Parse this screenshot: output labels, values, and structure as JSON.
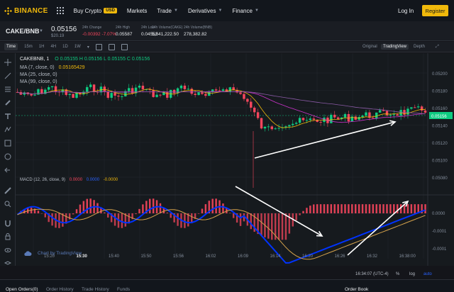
{
  "nav": {
    "logo": "BINANCE",
    "items": [
      {
        "label": "Buy Crypto",
        "badge": "USD"
      },
      {
        "label": "Markets"
      },
      {
        "label": "Trade"
      },
      {
        "label": "Derivatives"
      },
      {
        "label": "Finance"
      }
    ],
    "login": "Log In",
    "register": "Register"
  },
  "ticker": {
    "pair": "CAKE/BNB",
    "price": "0.05156",
    "price_usd": "$20.19",
    "stats": [
      {
        "label": "24h Change",
        "value": "-0.00392 -7.07%"
      },
      {
        "label": "24h High",
        "value": "0.05587"
      },
      {
        "label": "24h Low",
        "value": "0.04552"
      },
      {
        "label": "24h Volume(CAKE)",
        "value": "5,541,222.50"
      },
      {
        "label": "24h Volume(BNB)",
        "value": "278,382.82"
      }
    ]
  },
  "toolbar": {
    "timeframes": [
      "Time",
      "15m",
      "1H",
      "4H",
      "1D",
      "1W"
    ],
    "views": [
      "Original",
      "TradingView",
      "Depth"
    ]
  },
  "legend": {
    "symbol": "CAKEBNB, 1",
    "ohlc": "O 0.05155  H 0.05156  L 0.05155  C 0.05156",
    "ma7": "MA (7, close, 0)",
    "ma7_val": "0.05165429",
    "ma25": "MA (25, close, 0)",
    "ma99": "MA (99, close, 0)",
    "macd": "MACD (12, 26, close, 9)",
    "macd_v1": "0.0000",
    "macd_v2": "0.0000",
    "macd_v3": "-0.0000"
  },
  "price_axis": [
    "0.05200",
    "0.05180",
    "0.05160",
    "0.05140",
    "0.05120",
    "0.05100",
    "0.05080"
  ],
  "price_tag": "0.05156",
  "macd_axis": [
    "0.0000",
    "-0.0001",
    "-0.0001"
  ],
  "time_axis": [
    "15:20",
    "15:30",
    "15:40",
    "15:50",
    "15:56",
    "16:02",
    "16:09",
    "16:14",
    "16:20",
    "16:26",
    "16:32",
    "16:38:00"
  ],
  "footer": {
    "clock": "16:34:07 (UTC-4)",
    "pct": "%",
    "log": "log",
    "auto": "auto",
    "tradingview": "Chart by TradingView"
  },
  "bottom_tabs": [
    "Open Orders(0)",
    "Order History",
    "Trade History",
    "Funds"
  ],
  "order_book": "Order Book",
  "colors": {
    "accent": "#f0b90b",
    "up": "#0ecb81",
    "down": "#f6465d",
    "ma7": "#f0b90b",
    "ma25": "#cc33cc",
    "ma99": "#8a5aa6",
    "macd": "#0033ff",
    "signal": "#d4a24c"
  }
}
